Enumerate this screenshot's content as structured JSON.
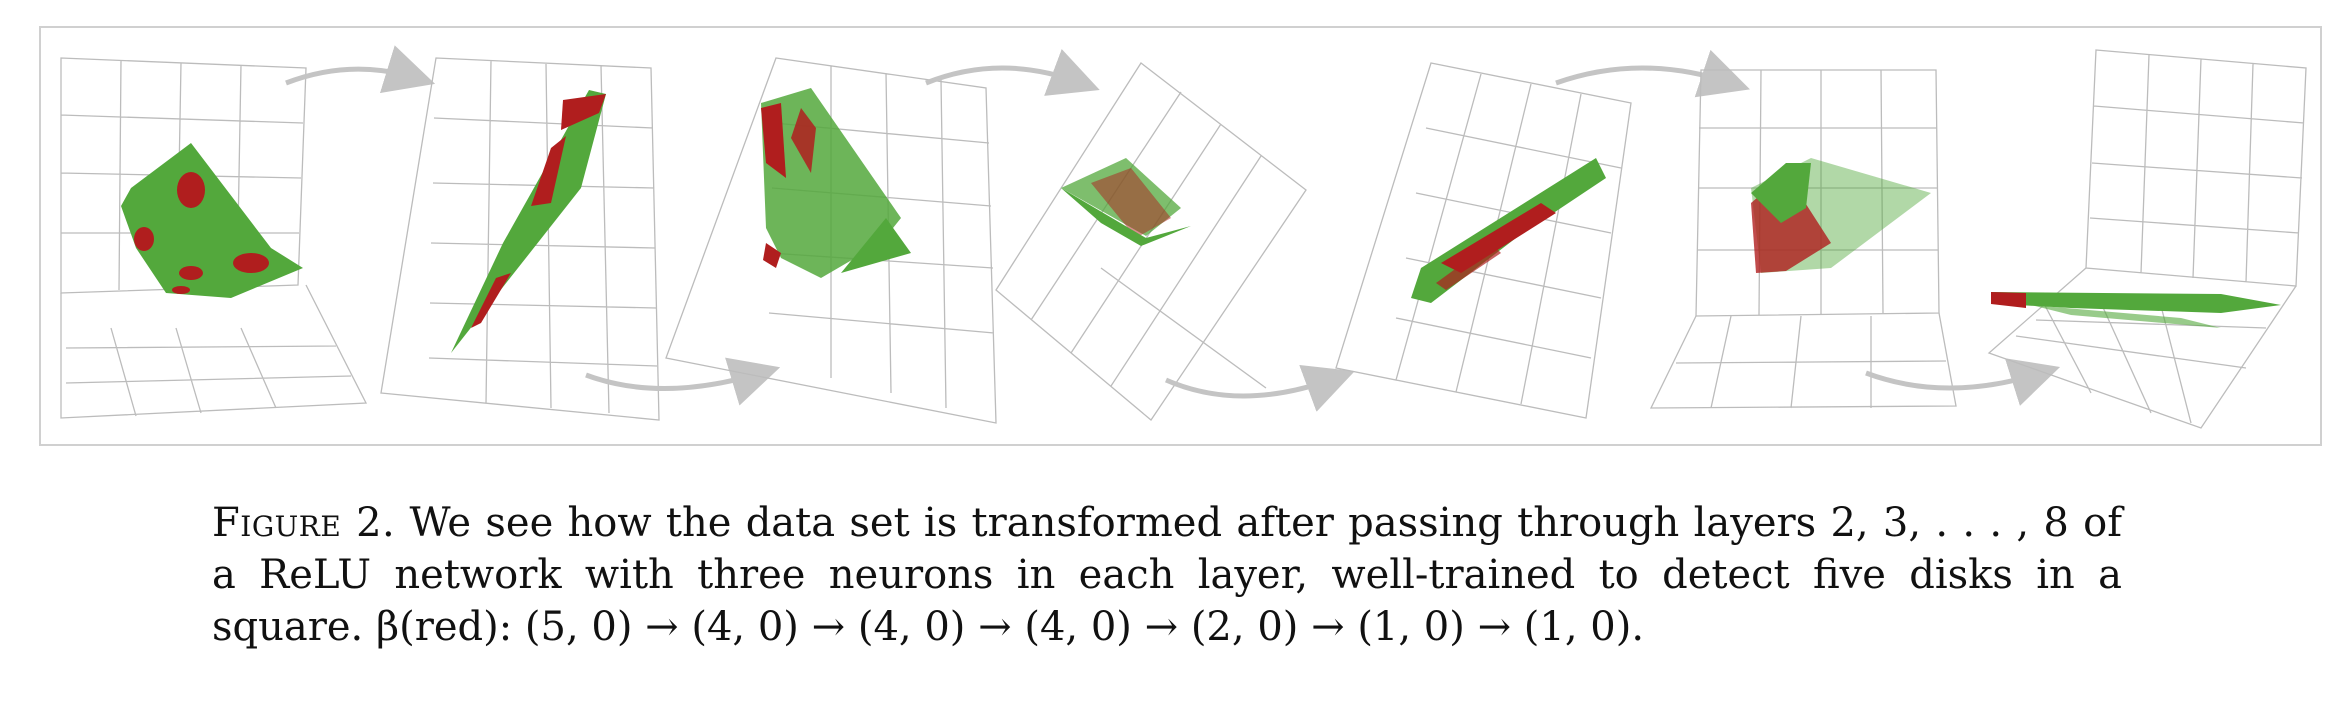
{
  "figure": {
    "panel_count": 7,
    "colors": {
      "green": "#53a83c",
      "red": "#b01e1e",
      "grid": "#bcbcbc",
      "arrow": "#c4c4c4"
    }
  },
  "caption": {
    "label": "Figure 2.",
    "text": " We see how the data set is transformed after passing through layers 2, 3, . . . , 8 of a ReLU network with three neurons in each layer, well-trained to detect five disks in a square. β(red): (5, 0) → (4, 0) → (4, 0) → (4, 0) → (2, 0) → (1, 0) → (1, 0)."
  }
}
